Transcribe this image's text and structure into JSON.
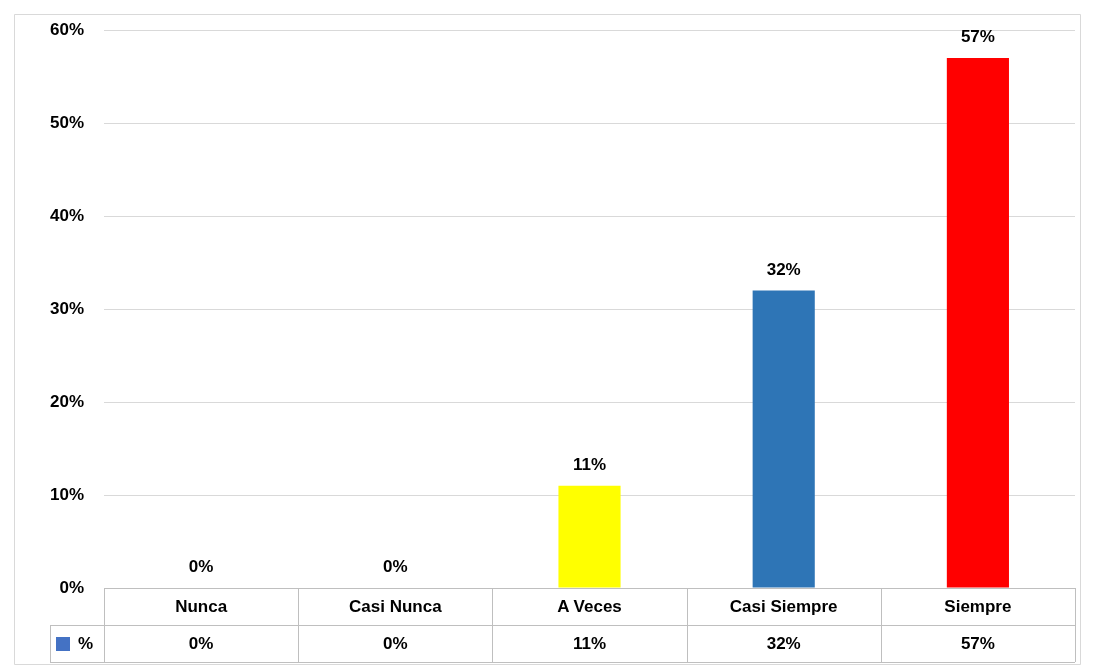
{
  "chart_data": {
    "type": "bar",
    "categories": [
      "Nunca",
      "Casi Nunca",
      "A Veces",
      "Casi Siempre",
      "Siempre"
    ],
    "series": [
      {
        "name": "%",
        "color": "#4472c4",
        "colors": [
          "#4472c4",
          "#4472c4",
          "#ffff00",
          "#2e75b6",
          "#ff0000"
        ],
        "values": [
          0,
          0,
          11,
          32,
          57
        ],
        "value_labels": [
          "0%",
          "0%",
          "11%",
          "32%",
          "57%"
        ]
      }
    ],
    "ylim": [
      0,
      60
    ],
    "yticks": [
      {
        "value": 0,
        "label": "0%"
      },
      {
        "value": 10,
        "label": "10%"
      },
      {
        "value": 20,
        "label": "20%"
      },
      {
        "value": 30,
        "label": "30%"
      },
      {
        "value": 40,
        "label": "40%"
      },
      {
        "value": 50,
        "label": "50%"
      },
      {
        "value": 60,
        "label": "60%"
      }
    ],
    "grid": "y"
  }
}
